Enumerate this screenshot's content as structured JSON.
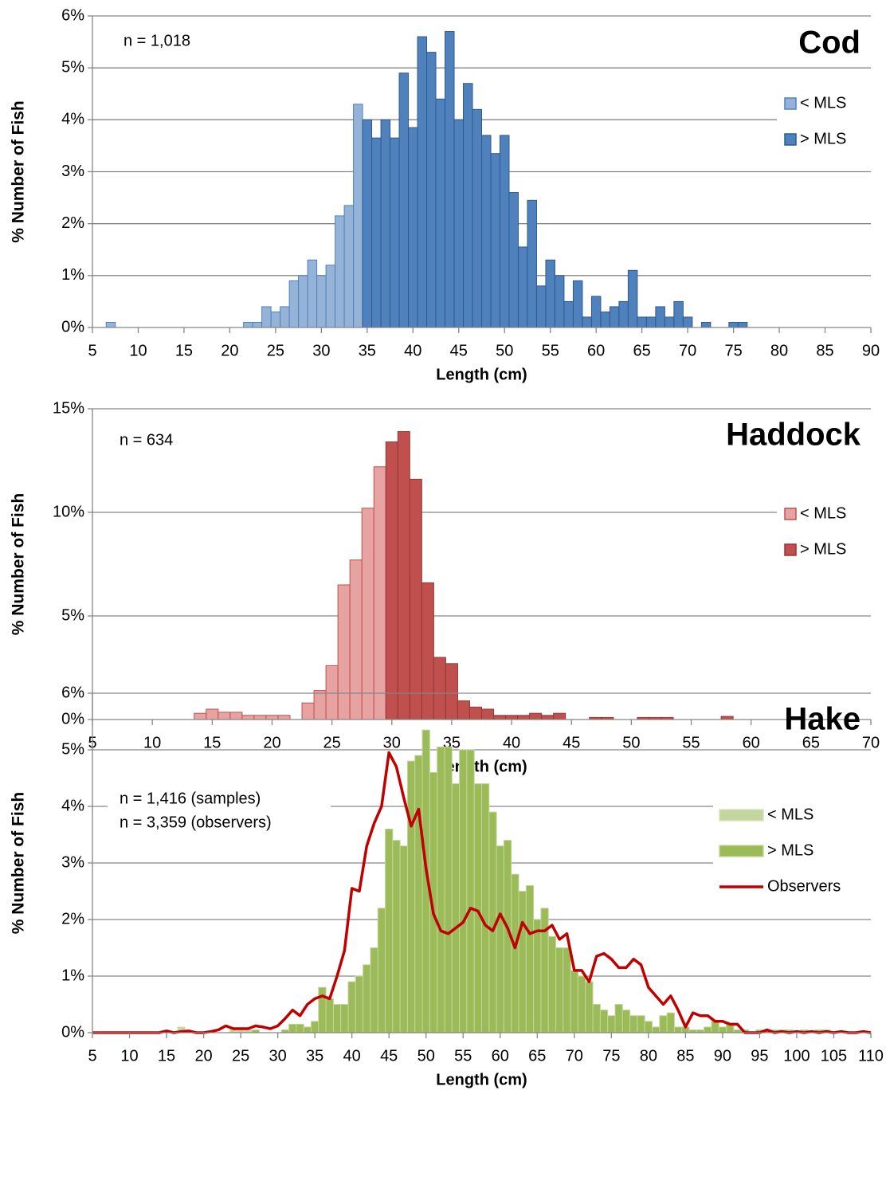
{
  "chart_data": [
    {
      "type": "bar",
      "title": "Cod",
      "annotations": [
        "n = 1,018"
      ],
      "xlabel": "Length (cm)",
      "ylabel": "% Number of Fish",
      "xlim": [
        5,
        90
      ],
      "xticks": [
        5,
        10,
        15,
        20,
        25,
        30,
        35,
        40,
        45,
        50,
        55,
        60,
        65,
        70,
        75,
        80,
        85,
        90
      ],
      "ylim": [
        0,
        6
      ],
      "yticks": [
        {
          "value": 0,
          "label": "0%"
        },
        {
          "value": 1,
          "label": "1%"
        },
        {
          "value": 2,
          "label": "2%"
        },
        {
          "value": 3,
          "label": "3%"
        },
        {
          "value": 4,
          "label": "4%"
        },
        {
          "value": 5,
          "label": "5%"
        },
        {
          "value": 6,
          "label": "6%"
        }
      ],
      "grid": true,
      "legend": "right",
      "series": [
        {
          "name": "< MLS",
          "color": "#95b3d7",
          "edgecolor": "#4f81bd",
          "x": [
            7,
            8,
            9,
            10,
            11,
            12,
            13,
            14,
            15,
            16,
            17,
            18,
            19,
            20,
            21,
            22,
            23,
            24,
            25,
            26,
            27,
            28,
            29,
            30,
            31,
            32,
            33,
            34
          ],
          "values": [
            0.1,
            0,
            0,
            0,
            0,
            0,
            0,
            0,
            0,
            0,
            0,
            0,
            0,
            0,
            0,
            0.1,
            0.1,
            0.4,
            0.3,
            0.4,
            0.9,
            1.0,
            1.3,
            1.0,
            1.2,
            2.15,
            2.35,
            4.3
          ]
        },
        {
          "name": "> MLS",
          "color": "#4f81bd",
          "edgecolor": "#2f5a8c",
          "x": [
            35,
            36,
            37,
            38,
            39,
            40,
            41,
            42,
            43,
            44,
            45,
            46,
            47,
            48,
            49,
            50,
            51,
            52,
            53,
            54,
            55,
            56,
            57,
            58,
            59,
            60,
            61,
            62,
            63,
            64,
            65,
            66,
            67,
            68,
            69,
            70,
            71,
            72,
            73,
            74,
            75,
            76
          ],
          "values": [
            4.0,
            3.65,
            4.0,
            3.65,
            4.9,
            3.85,
            5.6,
            5.3,
            4.4,
            5.7,
            4.0,
            4.7,
            4.2,
            3.7,
            3.35,
            3.7,
            2.6,
            1.55,
            2.45,
            0.8,
            1.3,
            1.0,
            0.5,
            0.9,
            0.2,
            0.6,
            0.3,
            0.4,
            0.5,
            1.1,
            0.2,
            0.2,
            0.4,
            0.2,
            0.5,
            0.2,
            0,
            0.1,
            0,
            0,
            0.1,
            0.1
          ]
        }
      ]
    },
    {
      "type": "bar",
      "title": "Haddock",
      "annotations": [
        "n = 634"
      ],
      "xlabel": "Length (cm)",
      "ylabel": "% Number of Fish",
      "xlim": [
        5,
        70
      ],
      "xticks": [
        5,
        10,
        15,
        20,
        25,
        30,
        35,
        40,
        45,
        50,
        55,
        60,
        65,
        70
      ],
      "ylim": [
        0,
        15
      ],
      "yticks": [
        {
          "value": 0,
          "label": "0%"
        },
        {
          "value": 5,
          "label": "5%"
        },
        {
          "value": 10,
          "label": "10%"
        },
        {
          "value": 15,
          "label": "15%"
        }
      ],
      "grid": true,
      "legend": "right",
      "series": [
        {
          "name": "< MLS",
          "color": "#e6a3a2",
          "edgecolor": "#c0504d",
          "x": [
            14,
            15,
            16,
            17,
            18,
            19,
            20,
            21,
            22,
            23,
            24,
            25,
            26,
            27,
            28,
            29
          ],
          "values": [
            0.3,
            0.5,
            0.35,
            0.35,
            0.2,
            0.2,
            0.2,
            0.2,
            0,
            0.8,
            1.4,
            2.6,
            6.5,
            7.7,
            10.2,
            12.2
          ]
        },
        {
          "name": "> MLS",
          "color": "#c0504d",
          "edgecolor": "#953735",
          "x": [
            30,
            31,
            32,
            33,
            34,
            35,
            36,
            37,
            38,
            39,
            40,
            41,
            42,
            43,
            44,
            45,
            46,
            47,
            48,
            49,
            50,
            51,
            52,
            53,
            54,
            55,
            56,
            57,
            58
          ],
          "values": [
            13.4,
            13.9,
            11.6,
            6.6,
            3.0,
            2.7,
            0.9,
            0.6,
            0.5,
            0.2,
            0.2,
            0.2,
            0.3,
            0.2,
            0.3,
            0,
            0,
            0.1,
            0.1,
            0,
            0,
            0.1,
            0.1,
            0.1,
            0,
            0,
            0,
            0,
            0.15
          ]
        }
      ]
    },
    {
      "type": "bar",
      "title": "Hake",
      "annotations": [
        "n = 1,416 (samples)",
        "n = 3,359 (observers)"
      ],
      "xlabel": "Length (cm)",
      "ylabel": "% Number of Fish",
      "xlim": [
        5,
        110
      ],
      "xticks": [
        5,
        10,
        15,
        20,
        25,
        30,
        35,
        40,
        45,
        50,
        55,
        60,
        65,
        70,
        75,
        80,
        85,
        90,
        95,
        100,
        105,
        110
      ],
      "ylim": [
        0,
        6
      ],
      "yticks": [
        {
          "value": 0,
          "label": "0%"
        },
        {
          "value": 1,
          "label": "1%"
        },
        {
          "value": 2,
          "label": "2%"
        },
        {
          "value": 3,
          "label": "3%"
        },
        {
          "value": 4,
          "label": "4%"
        },
        {
          "value": 5,
          "label": "5%"
        },
        {
          "value": 6,
          "label": "6%"
        }
      ],
      "grid": true,
      "legend": "right",
      "series": [
        {
          "name": "< MLS",
          "color": "#c3d69b",
          "edgecolor": "#d7e4bd",
          "x": [
            17,
            18,
            19,
            20,
            21,
            22,
            23,
            24,
            25,
            26
          ],
          "values": [
            0.1,
            0,
            0,
            0,
            0,
            0,
            0,
            0.05,
            0.05,
            0.05
          ]
        },
        {
          "name": "> MLS",
          "color": "#9bbb59",
          "edgecolor": "#c3d69b",
          "x": [
            27,
            28,
            29,
            30,
            31,
            32,
            33,
            34,
            35,
            36,
            37,
            38,
            39,
            40,
            41,
            42,
            43,
            44,
            45,
            46,
            47,
            48,
            49,
            50,
            51,
            52,
            53,
            54,
            55,
            56,
            57,
            58,
            59,
            60,
            61,
            62,
            63,
            64,
            65,
            66,
            67,
            68,
            69,
            70,
            71,
            72,
            73,
            74,
            75,
            76,
            77,
            78,
            79,
            80,
            81,
            82,
            83,
            84,
            85,
            86,
            87,
            88,
            89,
            90,
            91,
            92,
            93,
            94,
            95,
            96,
            97,
            98,
            99,
            100,
            101,
            102,
            103,
            104
          ],
          "values": [
            0.05,
            0,
            0,
            0,
            0.05,
            0.15,
            0.15,
            0.1,
            0.2,
            0.8,
            0.6,
            0.5,
            0.5,
            0.9,
            1.0,
            1.2,
            1.5,
            2.2,
            3.6,
            3.4,
            3.3,
            4.8,
            4.9,
            5.35,
            4.6,
            5.05,
            5.05,
            4.4,
            5.0,
            5.0,
            4.4,
            4.4,
            3.9,
            3.3,
            3.4,
            2.8,
            2.5,
            2.6,
            2.0,
            2.2,
            1.7,
            1.5,
            1.5,
            1.1,
            1.0,
            0.9,
            0.5,
            0.4,
            0.3,
            0.5,
            0.4,
            0.3,
            0.3,
            0.2,
            0.1,
            0.3,
            0.35,
            0.1,
            0.1,
            0.05,
            0.05,
            0.1,
            0.2,
            0.1,
            0.15,
            0.05,
            0.05,
            0,
            0.05,
            0.05,
            0.05,
            0.05,
            0.05,
            0,
            0.05,
            0,
            0.05,
            0.05
          ]
        },
        {
          "name": "Observers",
          "type": "line",
          "color": "#c00000",
          "x": [
            5,
            6,
            7,
            8,
            9,
            10,
            11,
            12,
            13,
            14,
            15,
            16,
            17,
            18,
            19,
            20,
            21,
            22,
            23,
            24,
            25,
            26,
            27,
            28,
            29,
            30,
            31,
            32,
            33,
            34,
            35,
            36,
            37,
            38,
            39,
            40,
            41,
            42,
            43,
            44,
            45,
            46,
            47,
            48,
            49,
            50,
            51,
            52,
            53,
            54,
            55,
            56,
            57,
            58,
            59,
            60,
            61,
            62,
            63,
            64,
            65,
            66,
            67,
            68,
            69,
            70,
            71,
            72,
            73,
            74,
            75,
            76,
            77,
            78,
            79,
            80,
            81,
            82,
            83,
            84,
            85,
            86,
            87,
            88,
            89,
            90,
            91,
            92,
            93,
            94,
            95,
            96,
            97,
            98,
            99,
            100,
            101,
            102,
            103,
            104,
            105,
            106,
            107,
            108,
            109,
            110
          ],
          "values": [
            0,
            0,
            0,
            0,
            0,
            0,
            0,
            0,
            0,
            0,
            0.03,
            0,
            0.02,
            0.03,
            0,
            0,
            0.02,
            0.05,
            0.12,
            0.07,
            0.07,
            0.07,
            0.12,
            0.1,
            0.07,
            0.12,
            0.25,
            0.4,
            0.3,
            0.5,
            0.6,
            0.65,
            0.6,
            1.0,
            1.45,
            2.55,
            2.5,
            3.3,
            3.7,
            4.0,
            4.95,
            4.7,
            4.15,
            3.65,
            3.95,
            2.9,
            2.1,
            1.8,
            1.75,
            1.85,
            1.95,
            2.2,
            2.15,
            1.9,
            1.8,
            2.1,
            1.85,
            1.5,
            1.95,
            1.75,
            1.8,
            1.8,
            1.9,
            1.65,
            1.75,
            1.1,
            1.1,
            0.9,
            1.35,
            1.4,
            1.3,
            1.15,
            1.15,
            1.3,
            1.2,
            0.8,
            0.65,
            0.5,
            0.65,
            0.4,
            0.1,
            0.35,
            0.3,
            0.3,
            0.2,
            0.2,
            0.15,
            0.15,
            0,
            0,
            0,
            0.05,
            0,
            0.02,
            0,
            0.02,
            0,
            0.02,
            0,
            0.02,
            0,
            0.02,
            0,
            0,
            0.02,
            0
          ]
        }
      ]
    }
  ]
}
